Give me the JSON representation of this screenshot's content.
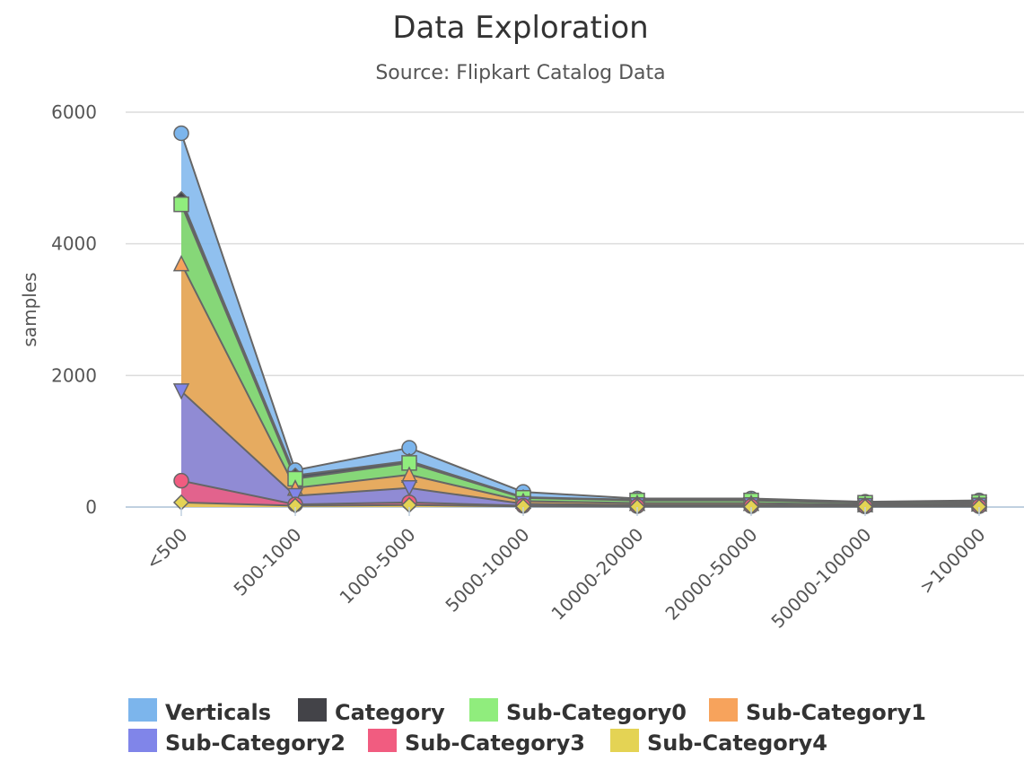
{
  "chart_data": {
    "type": "area",
    "title": "Data Exploration",
    "subtitle": "Source: Flipkart Catalog Data",
    "xlabel": "",
    "ylabel": "samples",
    "categories": [
      "<500",
      "500-1000",
      "1000-5000",
      "5000-10000",
      "10000-20000",
      "20000-50000",
      "50000-100000",
      ">100000"
    ],
    "yticks": [
      0,
      2000,
      4000,
      6000
    ],
    "ylim": [
      0,
      6000
    ],
    "grid": true,
    "legend_position": "bottom",
    "series": [
      {
        "name": "Verticals",
        "color": "#7cb5ec",
        "marker": "circle",
        "values": [
          5680,
          560,
          900,
          230,
          130,
          130,
          80,
          100
        ]
      },
      {
        "name": "Category",
        "color": "#434348",
        "marker": "diamond",
        "values": [
          4680,
          480,
          700,
          150,
          110,
          110,
          70,
          80
        ]
      },
      {
        "name": "Sub-Category0",
        "color": "#90ed7d",
        "marker": "square",
        "values": [
          4600,
          430,
          670,
          140,
          100,
          100,
          65,
          75
        ]
      },
      {
        "name": "Sub-Category1",
        "color": "#f7a35c",
        "marker": "triangle",
        "values": [
          3700,
          290,
          490,
          90,
          60,
          60,
          40,
          50
        ]
      },
      {
        "name": "Sub-Category2",
        "color": "#8085e9",
        "marker": "triangle-down",
        "values": [
          1760,
          170,
          290,
          50,
          30,
          30,
          20,
          25
        ]
      },
      {
        "name": "Sub-Category3",
        "color": "#f15c80",
        "marker": "circle",
        "values": [
          400,
          40,
          70,
          20,
          15,
          15,
          10,
          12
        ]
      },
      {
        "name": "Sub-Category4",
        "color": "#e4d354",
        "marker": "diamond",
        "values": [
          70,
          20,
          30,
          10,
          5,
          5,
          5,
          5
        ]
      }
    ]
  }
}
